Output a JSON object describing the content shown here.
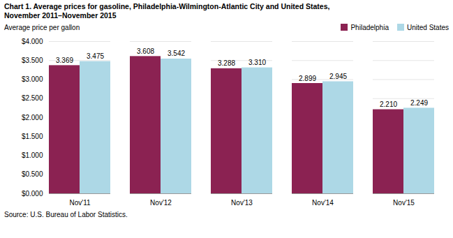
{
  "chart_data": {
    "type": "bar",
    "title": "Chart 1. Average prices for gasoline, Philadelphia-Wilmington-Atlantic City and United States,",
    "subtitle": "November 2011–November 2015",
    "ylabel": "Average price per gallon",
    "source": "Source: U.S. Bureau of Labor Statistics.",
    "categories": [
      "Nov'11",
      "Nov'12",
      "Nov'13",
      "Nov'14",
      "Nov'15"
    ],
    "series": [
      {
        "name": "Philadelphia",
        "color": "#8B2252",
        "values": [
          3.369,
          3.608,
          3.288,
          2.899,
          2.21
        ],
        "value_labels": [
          "3.369",
          "3.608",
          "3.288",
          "2.899",
          "2.210"
        ]
      },
      {
        "name": "United States",
        "color": "#ADD8E6",
        "values": [
          3.475,
          3.542,
          3.31,
          2.945,
          2.249
        ],
        "value_labels": [
          "3.475",
          "3.542",
          "3.310",
          "2.945",
          "2.249"
        ]
      }
    ],
    "ylim": [
      0,
      4.0
    ],
    "yticks": [
      {
        "value": 0.0,
        "label": "$0.000"
      },
      {
        "value": 0.5,
        "label": "$0.500"
      },
      {
        "value": 1.0,
        "label": "$1.000"
      },
      {
        "value": 1.5,
        "label": "$1.500"
      },
      {
        "value": 2.0,
        "label": "$2.000"
      },
      {
        "value": 2.5,
        "label": "$2.500"
      },
      {
        "value": 3.0,
        "label": "$3.000"
      },
      {
        "value": 3.5,
        "label": "$3.500"
      },
      {
        "value": 4.0,
        "label": "$4.000"
      }
    ],
    "grid": true,
    "legend": "upper right",
    "data_labels": true
  }
}
